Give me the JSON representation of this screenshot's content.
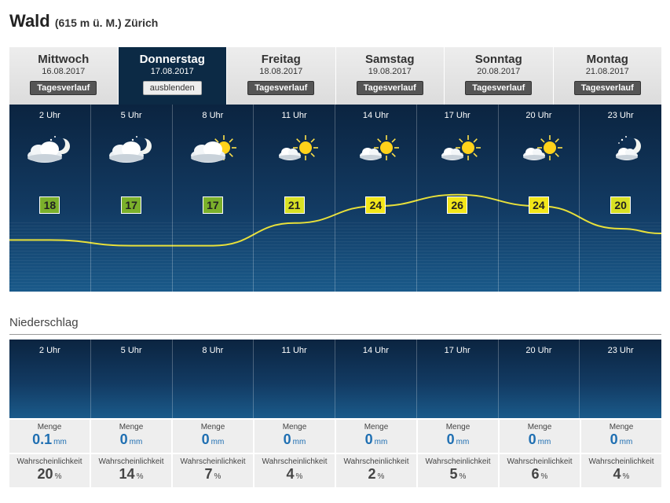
{
  "location": {
    "name": "Wald",
    "details": "(615 m ü. M.) Zürich"
  },
  "days": [
    {
      "name": "Mittwoch",
      "date": "16.08.2017",
      "button": "Tagesverlauf",
      "active": false
    },
    {
      "name": "Donnerstag",
      "date": "17.08.2017",
      "button": "ausblenden",
      "active": true
    },
    {
      "name": "Freitag",
      "date": "18.08.2017",
      "button": "Tagesverlauf",
      "active": false
    },
    {
      "name": "Samstag",
      "date": "19.08.2017",
      "button": "Tagesverlauf",
      "active": false
    },
    {
      "name": "Sonntag",
      "date": "20.08.2017",
      "button": "Tagesverlauf",
      "active": false
    },
    {
      "name": "Montag",
      "date": "21.08.2017",
      "button": "Tagesverlauf",
      "active": false
    }
  ],
  "hours": [
    {
      "label": "2 Uhr",
      "temp": "18",
      "temp_color": "#7bb02b",
      "icon": "cloud-moon-icon"
    },
    {
      "label": "5 Uhr",
      "temp": "17",
      "temp_color": "#7bb02b",
      "icon": "cloud-moon-icon"
    },
    {
      "label": "8 Uhr",
      "temp": "17",
      "temp_color": "#7bb02b",
      "icon": "cloud-sun-icon"
    },
    {
      "label": "11 Uhr",
      "temp": "21",
      "temp_color": "#d8e024",
      "icon": "sun-small-cloud-icon"
    },
    {
      "label": "14 Uhr",
      "temp": "24",
      "temp_color": "#f3e619",
      "icon": "sun-small-cloud-icon"
    },
    {
      "label": "17 Uhr",
      "temp": "26",
      "temp_color": "#f3e619",
      "icon": "sun-small-cloud-icon"
    },
    {
      "label": "20 Uhr",
      "temp": "24",
      "temp_color": "#f3e619",
      "icon": "sun-small-cloud-icon"
    },
    {
      "label": "23 Uhr",
      "temp": "20",
      "temp_color": "#d8e024",
      "icon": "moon-small-cloud-icon"
    }
  ],
  "precipitation": {
    "title": "Niederschlag",
    "amount_label": "Menge",
    "amount_unit": "mm",
    "probability_label": "Wahrscheinlichkeit",
    "probability_unit": "%",
    "amounts": [
      "0.1",
      "0",
      "0",
      "0",
      "0",
      "0",
      "0",
      "0"
    ],
    "probabilities": [
      "20",
      "14",
      "7",
      "4",
      "2",
      "5",
      "6",
      "4"
    ]
  },
  "colors": {
    "accent": "#1f6fb2",
    "panel_dark": "#0b2440",
    "active_day": "#0c2a45",
    "curve": "#e8e03a"
  }
}
